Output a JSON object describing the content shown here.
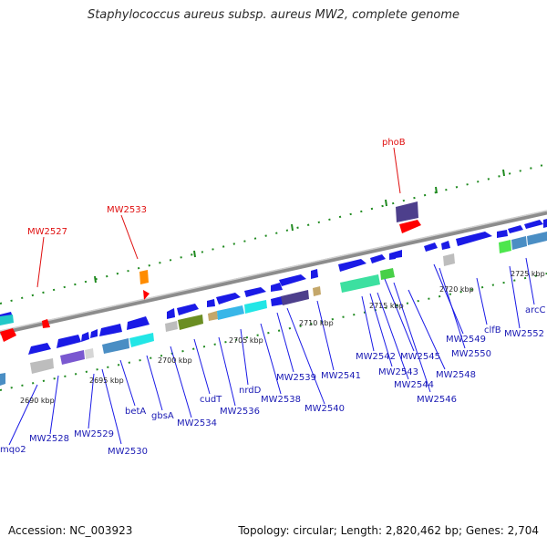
{
  "title": "Staphylococcus aureus subsp. aureus MW2, complete genome",
  "footer": {
    "accession": "Accession: NC_003923",
    "topology": "Topology: circular; Length: 2,820,462 bp; Genes: 2,704"
  },
  "colors": {
    "backbone": "#8c8c8c",
    "forward_track": "#1a1ae6",
    "gene_label": "#1a1ab4",
    "rna_label": "#e01010",
    "rna_feature": "#ff0000",
    "dotted_ruler": "#1f8a1f"
  },
  "tick_labels": [
    "2690 kbp",
    "2695 kbp",
    "2700 kbp",
    "2705 kbp",
    "2710 kbp",
    "2715 kbp",
    "2720 kbp",
    "2725 kbp"
  ],
  "gene_labels": [
    {
      "text": "mqo2",
      "color": "blue"
    },
    {
      "text": "MW2528",
      "color": "blue"
    },
    {
      "text": "MW2529",
      "color": "blue"
    },
    {
      "text": "MW2530",
      "color": "blue"
    },
    {
      "text": "betA",
      "color": "blue"
    },
    {
      "text": "gbsA",
      "color": "blue"
    },
    {
      "text": "MW2534",
      "color": "blue"
    },
    {
      "text": "cudT",
      "color": "blue"
    },
    {
      "text": "MW2536",
      "color": "blue"
    },
    {
      "text": "nrdD",
      "color": "blue"
    },
    {
      "text": "MW2538",
      "color": "blue"
    },
    {
      "text": "MW2539",
      "color": "blue"
    },
    {
      "text": "MW2540",
      "color": "blue"
    },
    {
      "text": "MW2541",
      "color": "blue"
    },
    {
      "text": "MW2542",
      "color": "blue"
    },
    {
      "text": "MW2543",
      "color": "blue"
    },
    {
      "text": "MW2544",
      "color": "blue"
    },
    {
      "text": "MW2545",
      "color": "blue"
    },
    {
      "text": "MW2546",
      "color": "blue"
    },
    {
      "text": "MW2548",
      "color": "blue"
    },
    {
      "text": "MW2549",
      "color": "blue"
    },
    {
      "text": "MW2550",
      "color": "blue"
    },
    {
      "text": "clfB",
      "color": "blue"
    },
    {
      "text": "MW2552",
      "color": "blue"
    },
    {
      "text": "arcC",
      "color": "blue"
    },
    {
      "text": "MW2527",
      "color": "red"
    },
    {
      "text": "MW2533",
      "color": "red"
    },
    {
      "text": "phoB",
      "color": "red"
    }
  ]
}
